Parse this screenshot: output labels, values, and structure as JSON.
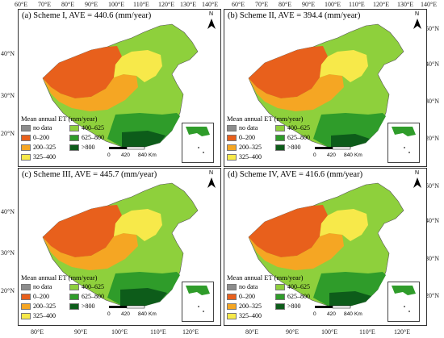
{
  "panels": [
    {
      "title": "(a) Scheme I, AVE = 440.6 (mm/year)"
    },
    {
      "title": "(b) Scheme II, AVE = 394.4 (mm/year)"
    },
    {
      "title": "(c) Scheme III, AVE = 445.7 (mm/year)"
    },
    {
      "title": "(d) Scheme IV, AVE = 416.6 (mm/year)"
    }
  ],
  "legend": {
    "title": "Mean annual ET (mm/year)",
    "items": [
      {
        "label": "no data",
        "color": "#8c8c8c"
      },
      {
        "label": "0–200",
        "color": "#e8601c"
      },
      {
        "label": "200–325",
        "color": "#f5a623"
      },
      {
        "label": "325–400",
        "color": "#f7e94a"
      },
      {
        "label": "400–625",
        "color": "#8ed03c"
      },
      {
        "label": "625–800",
        "color": "#2f9c2a"
      },
      {
        "label": ">800",
        "color": "#0d5c1a"
      }
    ]
  },
  "scale_bar": {
    "values": [
      "0",
      "420",
      "840"
    ],
    "unit": "Km"
  },
  "north_label": "N",
  "top_lon_labels": [
    "60°E",
    "70°E",
    "80°E",
    "90°E",
    "100°E",
    "110°E",
    "120°E",
    "130°E",
    "140°E",
    "60°E",
    "70°E",
    "80°E",
    "90°E",
    "100°E",
    "110°E",
    "120°E",
    "130°E",
    "140°E"
  ],
  "bottom_lon_labels": [
    "80°E",
    "90°E",
    "100°E",
    "110°E",
    "120°E",
    "80°E",
    "90°E",
    "100°E",
    "110°E",
    "120°E"
  ],
  "left_lat_labels": [
    "40°N",
    "30°N",
    "20°N",
    "40°N",
    "30°N",
    "20°N"
  ],
  "right_lat_labels": [
    "50°N",
    "40°N",
    "30°N",
    "20°N",
    "50°N",
    "40°N",
    "30°N",
    "20°N"
  ]
}
